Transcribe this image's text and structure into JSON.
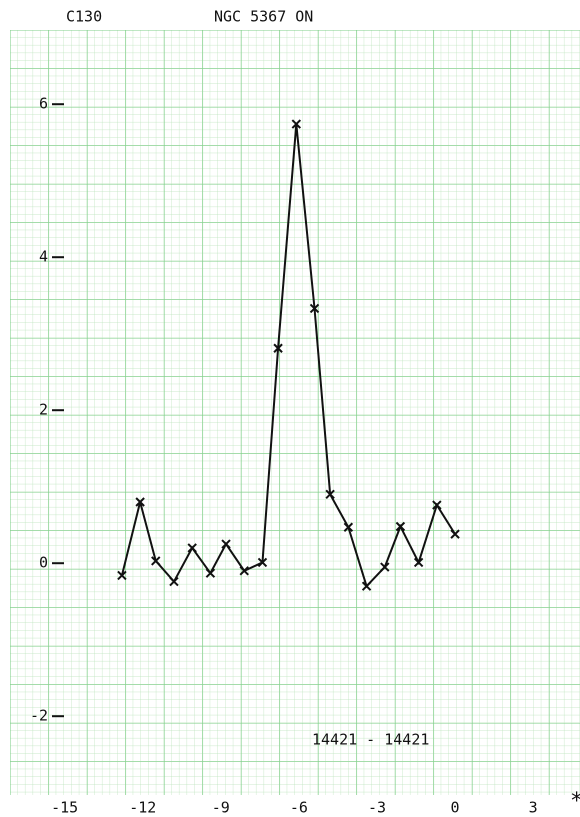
{
  "chart_data": {
    "type": "line",
    "header_left": "C130",
    "title": "NGC 5367 ON",
    "annotation": "14421 -  14421",
    "corner_mark": "*",
    "x": [
      -12.8,
      -12.1,
      -11.5,
      -10.8,
      -10.1,
      -9.4,
      -8.8,
      -8.1,
      -7.4,
      -6.8,
      -6.1,
      -5.4,
      -4.8,
      -4.1,
      -3.4,
      -2.7,
      -2.1,
      -1.4,
      -0.7,
      0
    ],
    "series": [
      {
        "color": "#111111",
        "values": [
          -0.16,
          0.8,
          0.03,
          -0.24,
          0.2,
          -0.13,
          0.25,
          -0.1,
          0.01,
          2.81,
          5.74,
          3.33,
          0.9,
          0.47,
          -0.3,
          -0.05,
          0.48,
          0.01,
          0.76,
          0.38
        ]
      }
    ],
    "xlim": [
      -17.1,
      4.8
    ],
    "ylim": [
      -3.03,
      6.97
    ],
    "xticks": [
      -15,
      -12,
      -9,
      -6,
      -3,
      0,
      3
    ],
    "yticks": [
      -2,
      0,
      2,
      4,
      6
    ],
    "markers": true
  }
}
